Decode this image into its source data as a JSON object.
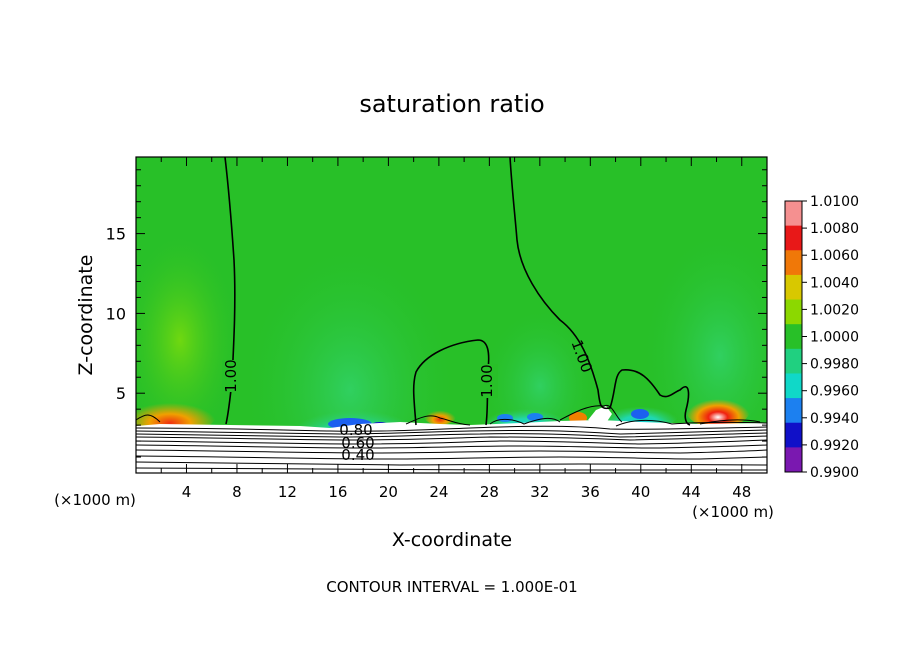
{
  "chart_data": {
    "type": "heatmap",
    "title": "saturation ratio",
    "xlabel": "X-coordinate",
    "ylabel": "Z-coordinate",
    "x_unit": "(×1000 m)",
    "y_unit": "(×1000 m)",
    "xlim": [
      0,
      50
    ],
    "ylim": [
      0,
      19.8
    ],
    "x_ticks": [
      "4",
      "8",
      "12",
      "16",
      "20",
      "24",
      "28",
      "32",
      "36",
      "40",
      "44",
      "48"
    ],
    "y_ticks": [
      "5",
      "10",
      "15"
    ],
    "footer": "CONTOUR INTERVAL = 1.000E-01",
    "colorbar": {
      "labels": [
        "1.0100",
        "1.0080",
        "1.0060",
        "1.0040",
        "1.0020",
        "1.0000",
        "0.9980",
        "0.9960",
        "0.9940",
        "0.9920",
        "0.9900"
      ],
      "colors": [
        "#f59090",
        "#e81818",
        "#f07808",
        "#d8c800",
        "#8cd800",
        "#28c028",
        "#20d080",
        "#10d8c8",
        "#1c80f0",
        "#1010c8",
        "#7a18b0"
      ]
    },
    "contour_labels": [
      "1.00",
      "1.00",
      "1.00",
      "0.80",
      "0.60",
      "0.40"
    ],
    "moist_layer_top_km": 3.2,
    "grid": false
  }
}
